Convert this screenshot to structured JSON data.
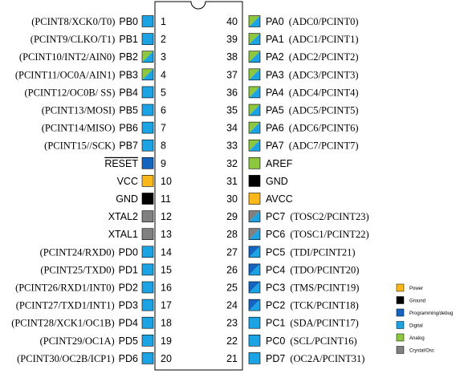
{
  "colors": {
    "power": "#FBB81B",
    "ground": "#000000",
    "programming": "#1565C0",
    "digital": "#1BA3E4",
    "analog": "#8DC63F",
    "crystal": "#808080"
  },
  "legend": [
    {
      "key": "power",
      "label": "Power"
    },
    {
      "key": "ground",
      "label": "Ground"
    },
    {
      "key": "programming",
      "label": "Programming/debug"
    },
    {
      "key": "digital",
      "label": "Digital"
    },
    {
      "key": "analog",
      "label": "Analog"
    },
    {
      "key": "crystal",
      "label": "Crystal/Osc"
    }
  ],
  "left_pins": [
    {
      "num": "1",
      "name": "PB0",
      "alt": "(PCINT8/XCK0/T0)",
      "fill": [
        "digital"
      ]
    },
    {
      "num": "2",
      "name": "PB1",
      "alt": "(PCINT9/CLKO/T1)",
      "fill": [
        "digital"
      ]
    },
    {
      "num": "3",
      "name": "PB2",
      "alt": "(PCINT10/INT2/AIN0)",
      "fill": [
        "digital",
        "analog"
      ]
    },
    {
      "num": "4",
      "name": "PB3",
      "alt": "(PCINT11/OC0A/AIN1)",
      "fill": [
        "digital",
        "analog"
      ]
    },
    {
      "num": "5",
      "name": "PB4",
      "alt": "(PCINT12/OC0B/ SS)",
      "fill": [
        "digital"
      ]
    },
    {
      "num": "6",
      "name": "PB5",
      "alt": "(PCINT13/MOSI)",
      "fill": [
        "digital"
      ]
    },
    {
      "num": "7",
      "name": "PB6",
      "alt": "(PCINT14/MISO)",
      "fill": [
        "digital"
      ]
    },
    {
      "num": "8",
      "name": "PB7",
      "alt": "(PCINT15//SCK)",
      "fill": [
        "digital"
      ]
    },
    {
      "num": "9",
      "name": "RESET",
      "alt": "",
      "fill": [
        "programming"
      ],
      "overline": true
    },
    {
      "num": "10",
      "name": "VCC",
      "alt": "",
      "fill": [
        "power"
      ]
    },
    {
      "num": "11",
      "name": "GND",
      "alt": "",
      "fill": [
        "ground"
      ]
    },
    {
      "num": "12",
      "name": "XTAL2",
      "alt": "",
      "fill": [
        "crystal"
      ]
    },
    {
      "num": "13",
      "name": "XTAL1",
      "alt": "",
      "fill": [
        "crystal"
      ]
    },
    {
      "num": "14",
      "name": "PD0",
      "alt": "(PCINT24/RXD0)",
      "fill": [
        "digital"
      ]
    },
    {
      "num": "15",
      "name": "PD1",
      "alt": "(PCINT25/TXD0)",
      "fill": [
        "digital"
      ]
    },
    {
      "num": "16",
      "name": "PD2",
      "alt": "(PCINT26/RXD1/INT0)",
      "fill": [
        "digital"
      ]
    },
    {
      "num": "17",
      "name": "PD3",
      "alt": "(PCINT27/TXD1/INT1)",
      "fill": [
        "digital"
      ]
    },
    {
      "num": "18",
      "name": "PD4",
      "alt": "(PCINT28/XCK1/OC1B)",
      "fill": [
        "digital"
      ]
    },
    {
      "num": "19",
      "name": "PD5",
      "alt": "(PCINT29/OC1A)",
      "fill": [
        "digital"
      ]
    },
    {
      "num": "20",
      "name": "PD6",
      "alt": "(PCINT30/OC2B/ICP1)",
      "fill": [
        "digital"
      ]
    }
  ],
  "right_pins": [
    {
      "num": "40",
      "name": "PA0",
      "alt": "(ADC0/PCINT0)",
      "fill": [
        "digital",
        "analog"
      ]
    },
    {
      "num": "39",
      "name": "PA1",
      "alt": "(ADC1/PCINT1)",
      "fill": [
        "digital",
        "analog"
      ]
    },
    {
      "num": "38",
      "name": "PA2",
      "alt": "(ADC2/PCINT2)",
      "fill": [
        "digital",
        "analog"
      ]
    },
    {
      "num": "37",
      "name": "PA3",
      "alt": "(ADC3/PCINT3)",
      "fill": [
        "digital",
        "analog"
      ]
    },
    {
      "num": "36",
      "name": "PA4",
      "alt": "(ADC4/PCINT4)",
      "fill": [
        "digital",
        "analog"
      ]
    },
    {
      "num": "35",
      "name": "PA5",
      "alt": "(ADC5/PCINT5)",
      "fill": [
        "digital",
        "analog"
      ]
    },
    {
      "num": "34",
      "name": "PA6",
      "alt": "(ADC6/PCINT6)",
      "fill": [
        "digital",
        "analog"
      ]
    },
    {
      "num": "33",
      "name": "PA7",
      "alt": "(ADC7/PCINT7)",
      "fill": [
        "digital",
        "analog"
      ]
    },
    {
      "num": "32",
      "name": "AREF",
      "alt": "",
      "fill": [
        "analog"
      ]
    },
    {
      "num": "31",
      "name": "GND",
      "alt": "",
      "fill": [
        "ground"
      ]
    },
    {
      "num": "30",
      "name": "AVCC",
      "alt": "",
      "fill": [
        "power"
      ]
    },
    {
      "num": "29",
      "name": "PC7",
      "alt": "(TOSC2/PCINT23)",
      "fill": [
        "digital",
        "crystal"
      ]
    },
    {
      "num": "28",
      "name": "PC6",
      "alt": "(TOSC1/PCINT22)",
      "fill": [
        "digital",
        "crystal"
      ]
    },
    {
      "num": "27",
      "name": "PC5",
      "alt": "(TDI/PCINT21)",
      "fill": [
        "digital",
        "programming"
      ]
    },
    {
      "num": "26",
      "name": "PC4",
      "alt": "(TDO/PCINT20)",
      "fill": [
        "digital",
        "programming"
      ]
    },
    {
      "num": "25",
      "name": "PC3",
      "alt": "(TMS/PCINT19)",
      "fill": [
        "digital",
        "programming"
      ]
    },
    {
      "num": "24",
      "name": "PC2",
      "alt": "(TCK/PCINT18)",
      "fill": [
        "digital",
        "programming"
      ]
    },
    {
      "num": "23",
      "name": "PC1",
      "alt": "(SDA/PCINT17)",
      "fill": [
        "digital"
      ]
    },
    {
      "num": "22",
      "name": "PC0",
      "alt": "(SCL/PCINT16)",
      "fill": [
        "digital"
      ]
    },
    {
      "num": "21",
      "name": "PD7",
      "alt": "(OC2A/PCINT31)",
      "fill": [
        "digital"
      ]
    }
  ]
}
